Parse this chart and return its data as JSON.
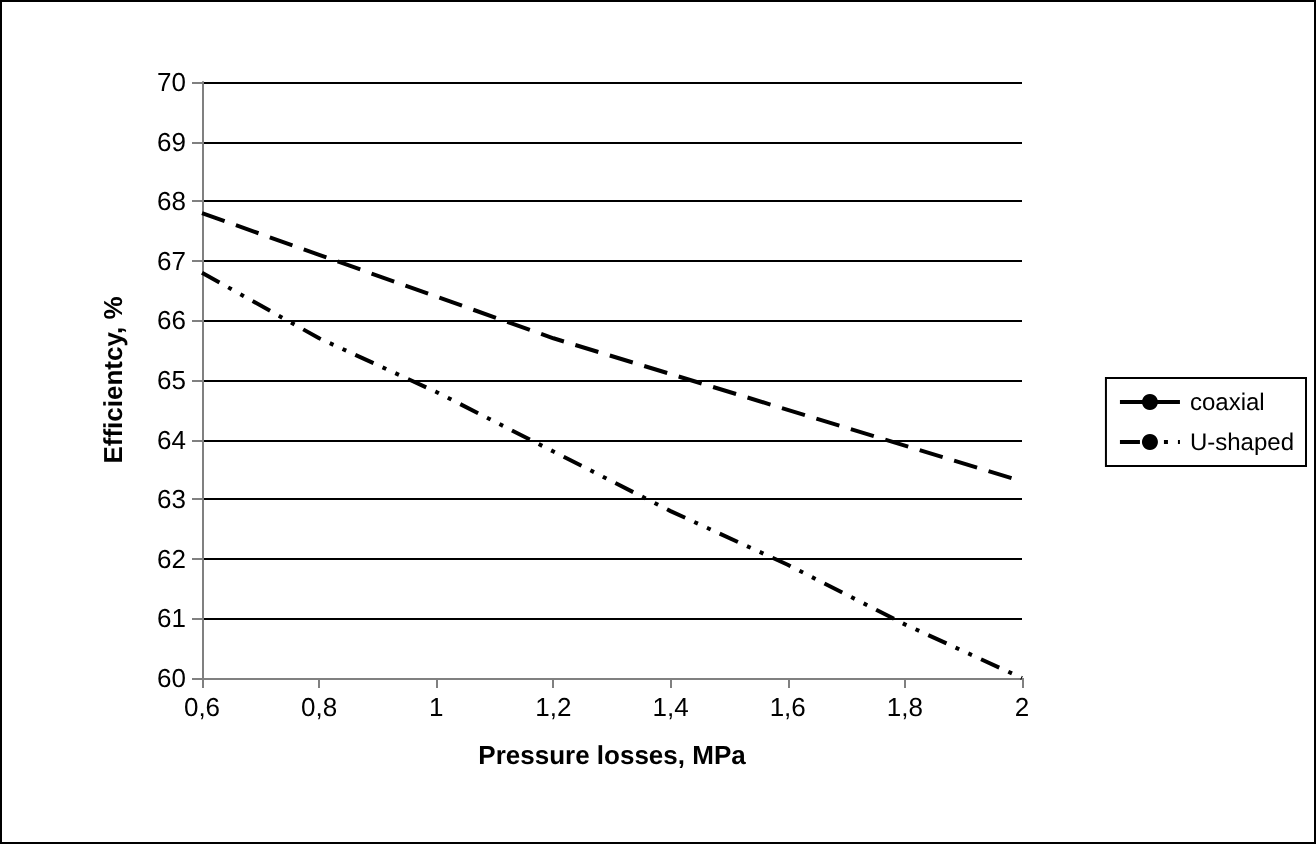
{
  "chart_data": {
    "type": "line",
    "xlabel": "Pressure losses, MPa",
    "ylabel": "Efficientcy, %",
    "x": [
      0.6,
      0.8,
      1.0,
      1.2,
      1.4,
      1.6,
      1.8,
      2.0
    ],
    "series": [
      {
        "name": "coaxial",
        "color": "#000000",
        "line_style": "dashed",
        "values": [
          67.8,
          67.1,
          66.4,
          65.7,
          65.1,
          64.5,
          63.9,
          63.3
        ]
      },
      {
        "name": "U-shaped",
        "color": "#000000",
        "line_style": "dotted",
        "values": [
          66.8,
          65.7,
          64.8,
          63.8,
          62.8,
          61.9,
          60.9,
          60.0
        ]
      }
    ],
    "xlim": [
      0.6,
      2
    ],
    "xticks": [
      {
        "value": 0.6,
        "label": "0,6"
      },
      {
        "value": 0.8,
        "label": "0,8"
      },
      {
        "value": 1,
        "label": "1"
      },
      {
        "value": 1.2,
        "label": "1,2"
      },
      {
        "value": 1.4,
        "label": "1,4"
      },
      {
        "value": 1.6,
        "label": "1,6"
      },
      {
        "value": 1.8,
        "label": "1,8"
      },
      {
        "value": 2,
        "label": "2"
      }
    ],
    "ylim": [
      60,
      70
    ],
    "yticks": [
      60,
      61,
      62,
      63,
      64,
      65,
      66,
      67,
      68,
      69,
      70
    ],
    "grid": "y",
    "legend": "right",
    "marker": "none"
  }
}
